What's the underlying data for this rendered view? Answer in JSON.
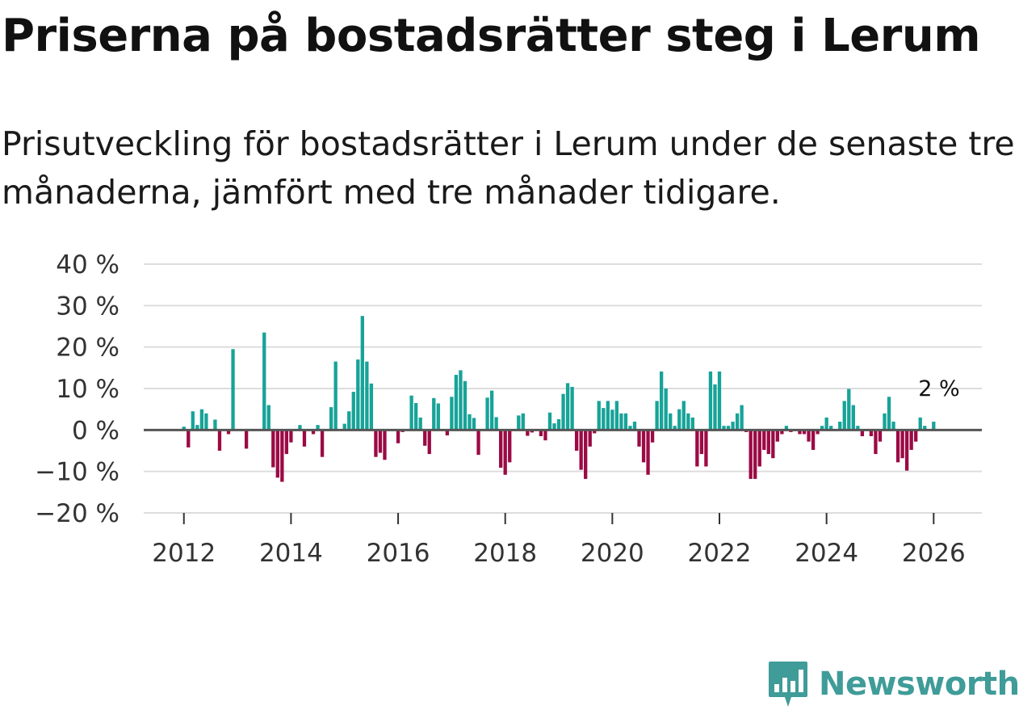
{
  "header": {
    "title": "Priserna på bostadsrätter steg i Lerum",
    "subtitle": "Prisutveckling för bostadsrätter i Lerum under de senaste tre månaderna, jämfört med tre månader tidigare."
  },
  "chart_data": {
    "type": "bar",
    "title": "Priserna på bostadsrätter steg i Lerum",
    "xlabel": "",
    "ylabel": "",
    "ylim": [
      -20,
      40
    ],
    "xlim": [
      2011.25,
      2026.9
    ],
    "y_ticks": [
      40,
      30,
      20,
      10,
      0,
      -10,
      -20
    ],
    "y_tick_labels": [
      "40 %",
      "30 %",
      "20 %",
      "10 %",
      "0 %",
      "−10 %",
      "−20 %"
    ],
    "x_ticks": [
      2012,
      2014,
      2016,
      2018,
      2020,
      2022,
      2024,
      2026
    ],
    "x_tick_labels": [
      "2012",
      "2014",
      "2016",
      "2018",
      "2020",
      "2022",
      "2024",
      "2026"
    ],
    "colors": {
      "positive": "#17a398",
      "negative": "#9b0a45",
      "zero_line": "#555555",
      "grid": "#dddddd"
    },
    "annotation": {
      "text": "2 %",
      "value": 2,
      "x": 2026.1
    },
    "series": [
      {
        "name": "Prisutveckling",
        "start": 2012.0,
        "step_years": 0.083333,
        "values": [
          0.8,
          -4.2,
          4.5,
          1.2,
          5.0,
          4.0,
          0,
          2.5,
          -5.0,
          0,
          -1.0,
          19.5,
          0,
          0,
          -4.5,
          0,
          0,
          0,
          23.5,
          6.0,
          -9.0,
          -11.5,
          -12.5,
          -5.8,
          -3.0,
          0,
          1.2,
          -4.0,
          0,
          -1.0,
          1.2,
          -6.5,
          0,
          5.5,
          16.5,
          0,
          1.5,
          4.5,
          9.2,
          17.0,
          27.5,
          16.5,
          11.2,
          -6.5,
          -5.5,
          -7.2,
          0,
          0,
          -3.2,
          -0.5,
          0,
          8.3,
          6.5,
          3.0,
          -3.8,
          -5.8,
          7.7,
          6.4,
          0,
          -1.3,
          8.0,
          13.3,
          14.4,
          11.8,
          3.8,
          2.9,
          -6.0,
          0,
          7.8,
          9.5,
          3.1,
          -9.1,
          -10.8,
          -7.8,
          0,
          3.5,
          4.0,
          -1.4,
          -0.6,
          0,
          -1.5,
          -2.5,
          4.2,
          1.6,
          2.6,
          8.7,
          11.3,
          10.4,
          -5.0,
          -9.6,
          -11.8,
          -4.0,
          -0.8,
          7.0,
          5.3,
          7.0,
          4.9,
          7.0,
          4.0,
          4.0,
          1.0,
          2.0,
          -4.0,
          -7.8,
          -10.8,
          -3.0,
          7.0,
          14.1,
          10.0,
          4.0,
          1.0,
          5.0,
          7.0,
          4.0,
          3.0,
          -8.8,
          -5.8,
          -8.8,
          14.1,
          11.0,
          14.1,
          1.0,
          1.0,
          2.0,
          4.0,
          6.0,
          -0.5,
          -11.8,
          -11.8,
          -8.8,
          -4.8,
          -5.8,
          -6.8,
          -2.8,
          -1.0,
          1.0,
          -0.5,
          0,
          -1.0,
          -1.0,
          -2.8,
          -4.8,
          -1.0,
          1.0,
          3.0,
          1.0,
          0,
          2.0,
          7.0,
          9.9,
          6.0,
          1.0,
          -1.5,
          0,
          -1.5,
          -5.8,
          -2.8,
          4.0,
          8.0,
          2.0,
          -7.8,
          -6.8,
          -9.8,
          -4.8,
          -2.8,
          3.0,
          1.0,
          0,
          2.0
        ]
      }
    ]
  },
  "branding": {
    "logo_text": "Newsworthy",
    "logo_icon": "newsworthy-chart-icon"
  }
}
